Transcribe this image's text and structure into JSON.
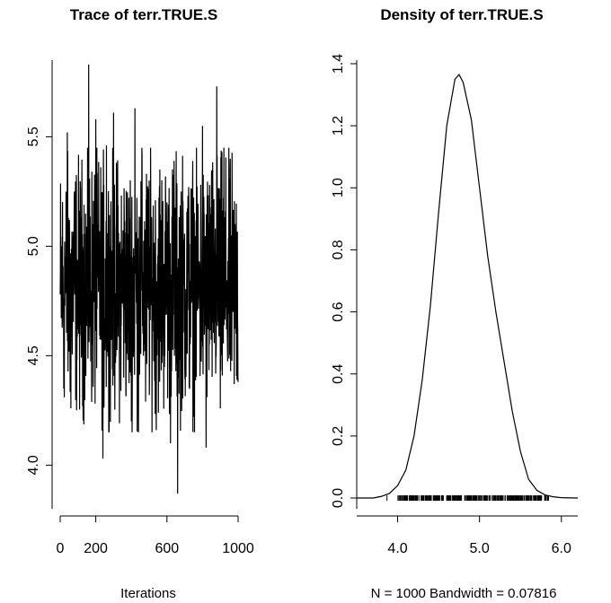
{
  "chart_data": [
    {
      "type": "line",
      "title": "Trace of terr.TRUE.S",
      "xlabel": "Iterations",
      "ylabel": "",
      "xlim": [
        0,
        1000
      ],
      "ylim": [
        3.85,
        5.85
      ],
      "x_ticks": [
        0,
        200,
        600,
        1000
      ],
      "x_tick_labels": [
        "0",
        "200",
        "600",
        "1000"
      ],
      "y_ticks": [
        4.0,
        4.5,
        5.0,
        5.5
      ],
      "y_tick_labels": [
        "4.0",
        "4.5",
        "5.0",
        "5.5"
      ],
      "grid": false,
      "summary": {
        "n_iterations": 1000,
        "mean_approx": 4.82,
        "min_approx": 3.87,
        "max_approx": 5.83
      },
      "series": [
        {
          "x": [
            0,
            20,
            40,
            60,
            80,
            100,
            120,
            140,
            160,
            180,
            200,
            220,
            240,
            260,
            280,
            300,
            320,
            340,
            360,
            380,
            400,
            420,
            440,
            460,
            480,
            500,
            520,
            540,
            560,
            580,
            600,
            620,
            640,
            660,
            680,
            700,
            720,
            740,
            760,
            780,
            800,
            820,
            840,
            860,
            880,
            900,
            920,
            940,
            960,
            980,
            1000
          ],
          "values": [
            4.78,
            4.35,
            5.52,
            4.26,
            5.25,
            4.62,
            4.88,
            4.45,
            5.83,
            4.55,
            5.58,
            4.82,
            4.03,
            5.46,
            4.44,
            5.61,
            4.6,
            4.7,
            5.12,
            4.48,
            4.2,
            5.63,
            4.15,
            5.42,
            4.29,
            5.3,
            4.75,
            4.16,
            5.35,
            4.5,
            5.2,
            4.1,
            5.39,
            3.87,
            5.25,
            4.45,
            4.88,
            5.12,
            4.4,
            4.9,
            5.55,
            4.08,
            5.28,
            4.65,
            5.73,
            4.26,
            5.45,
            4.55,
            5.05,
            4.7,
            4.38
          ]
        }
      ]
    },
    {
      "type": "area",
      "title": "Density of terr.TRUE.S",
      "xlabel": "N = 1000   Bandwidth = 0.07816",
      "ylabel": "",
      "xlim": [
        3.5,
        6.2
      ],
      "ylim": [
        -0.04,
        1.42
      ],
      "x_ticks": [
        4.0,
        5.0,
        6.0
      ],
      "x_tick_labels": [
        "4.0",
        "5.0",
        "6.0"
      ],
      "y_ticks": [
        0.0,
        0.2,
        0.4,
        0.6,
        0.8,
        1.0,
        1.2,
        1.4
      ],
      "y_tick_labels": [
        "0.0",
        "0.2",
        "0.4",
        "0.6",
        "0.8",
        "1.0",
        "1.2",
        "1.4"
      ],
      "grid": false,
      "n": 1000,
      "bandwidth": 0.07816,
      "series": [
        {
          "x": [
            3.5,
            3.7,
            3.8,
            3.9,
            4.0,
            4.1,
            4.2,
            4.3,
            4.4,
            4.5,
            4.6,
            4.7,
            4.75,
            4.8,
            4.9,
            5.0,
            5.1,
            5.2,
            5.3,
            5.4,
            5.5,
            5.6,
            5.7,
            5.8,
            5.9,
            6.0,
            6.2
          ],
          "values": [
            0.0,
            0.0,
            0.005,
            0.015,
            0.04,
            0.09,
            0.2,
            0.38,
            0.62,
            0.92,
            1.2,
            1.35,
            1.365,
            1.34,
            1.22,
            1.0,
            0.78,
            0.6,
            0.44,
            0.28,
            0.15,
            0.06,
            0.025,
            0.01,
            0.004,
            0.001,
            0.0
          ]
        }
      ],
      "rug": [
        3.87,
        4.03,
        4.08,
        4.1,
        4.15,
        4.16,
        4.2,
        4.26,
        4.29,
        4.35,
        4.38,
        4.4,
        4.44,
        4.45,
        4.48,
        4.5,
        4.55,
        4.6,
        4.62,
        4.65,
        4.7,
        4.75,
        4.78,
        4.82,
        4.88,
        4.9,
        5.05,
        5.12,
        5.2,
        5.25,
        5.28,
        5.3,
        5.35,
        5.39,
        5.42,
        5.45,
        5.46,
        5.52,
        5.55,
        5.58,
        5.61,
        5.63,
        5.73,
        5.83
      ]
    }
  ]
}
